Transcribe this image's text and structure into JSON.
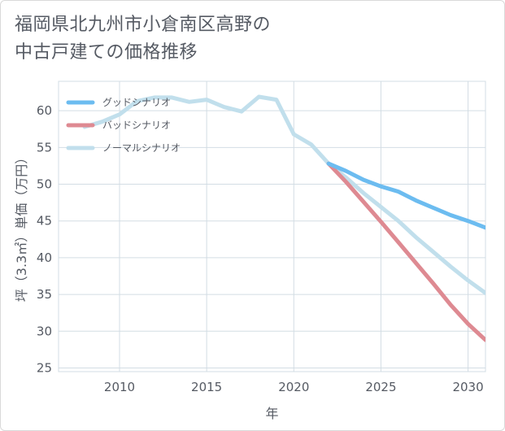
{
  "title": {
    "line1": "福岡県北九州市小倉南区高野の",
    "line2": "中古戸建ての価格推移"
  },
  "chart_data": {
    "type": "line",
    "xlabel": "年",
    "ylabel": "坪（3.3㎡）単価（万円）",
    "xlim": [
      2006.5,
      2031
    ],
    "ylim": [
      24.5,
      64
    ],
    "xticks": [
      2010,
      2015,
      2020,
      2025,
      2030
    ],
    "yticks": [
      25,
      30,
      35,
      40,
      45,
      50,
      55,
      60
    ],
    "grid": true,
    "legend_position": "top-left",
    "series": [
      {
        "name": "グッドシナリオ",
        "color": "#6cbcf0",
        "x": [
          2022,
          2023,
          2024,
          2025,
          2026,
          2027,
          2028,
          2029,
          2030,
          2031
        ],
        "y": [
          52.8,
          51.8,
          50.6,
          49.7,
          49.0,
          47.8,
          46.8,
          45.8,
          45.0,
          44.1
        ]
      },
      {
        "name": "バッドシナリオ",
        "color": "#de8a92",
        "x": [
          2022,
          2023,
          2024,
          2025,
          2026,
          2027,
          2028,
          2029,
          2030,
          2031
        ],
        "y": [
          52.8,
          50.3,
          47.6,
          44.9,
          42.1,
          39.3,
          36.5,
          33.6,
          31.0,
          28.8
        ]
      },
      {
        "name": "ノーマルシナリオ",
        "color": "#c1dfec",
        "x": [
          2008,
          2009,
          2010,
          2011,
          2012,
          2013,
          2014,
          2015,
          2016,
          2017,
          2018,
          2019,
          2020,
          2021,
          2022,
          2023,
          2024,
          2025,
          2026,
          2027,
          2028,
          2029,
          2030,
          2031
        ],
        "y": [
          57.8,
          58.5,
          59.5,
          61.3,
          61.8,
          61.8,
          61.2,
          61.5,
          60.5,
          59.9,
          61.9,
          61.5,
          56.8,
          55.4,
          52.8,
          50.9,
          48.8,
          46.9,
          45.0,
          42.8,
          40.8,
          38.8,
          36.9,
          35.2
        ]
      }
    ]
  }
}
